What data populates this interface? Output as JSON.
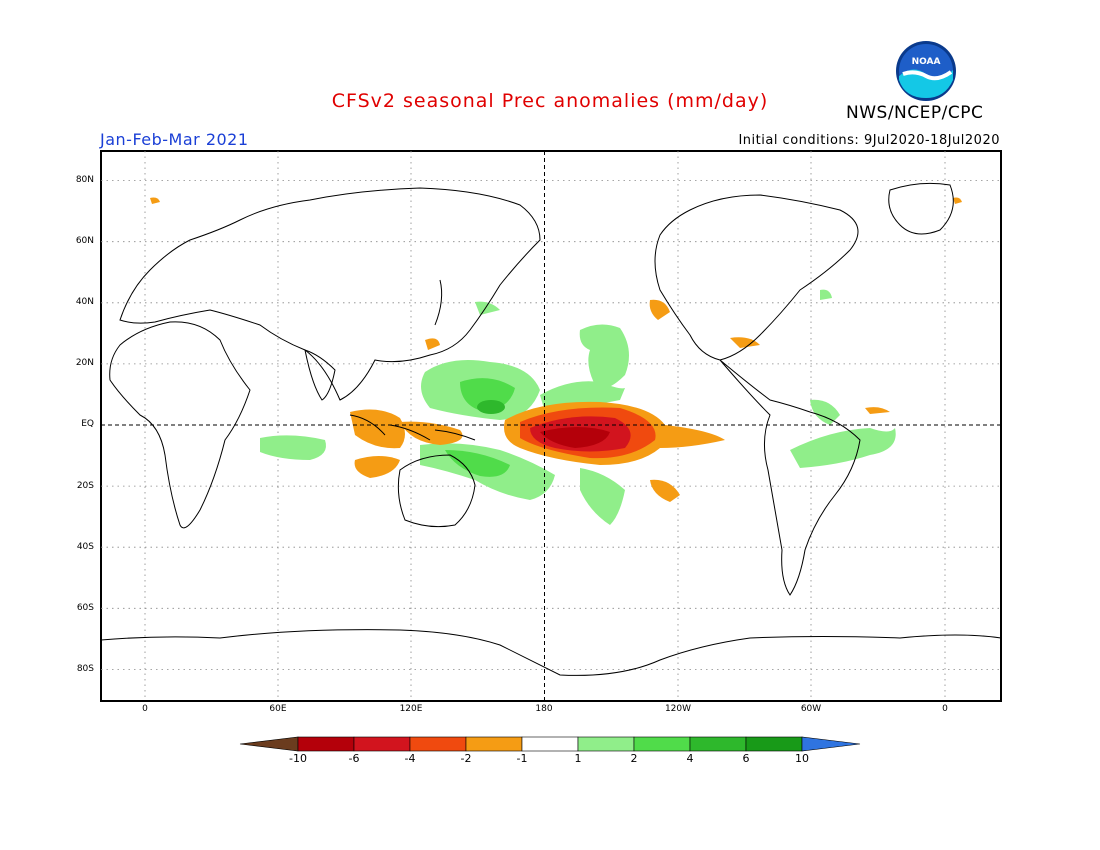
{
  "header": {
    "title": "CFSv2 seasonal Prec anomalies (mm/day)",
    "season": "Jan-Feb-Mar 2021",
    "initial_conditions": "Initial conditions: 9Jul2020-18Jul2020",
    "agency": "NWS/NCEP/CPC",
    "logo_text": "NOAA"
  },
  "axes": {
    "lat_labels": [
      "80N",
      "60N",
      "40N",
      "20N",
      "EQ",
      "20S",
      "40S",
      "60S",
      "80S"
    ],
    "lon_labels": [
      "0",
      "60E",
      "120E",
      "180",
      "120W",
      "60W",
      "0"
    ],
    "lat_range": [
      -90,
      90
    ],
    "lon_range": [
      -20,
      380
    ],
    "grid": "dotted"
  },
  "legend": {
    "labels": [
      "-10",
      "-6",
      "-4",
      "-2",
      "-1",
      "1",
      "2",
      "4",
      "6",
      "10"
    ],
    "colors": [
      "#6b3c1e",
      "#b4000a",
      "#d2141e",
      "#f04a0f",
      "#f59c14",
      "#ffffff",
      "#90ee8a",
      "#50dc4a",
      "#2eb82c",
      "#189a18",
      "#2f74e0"
    ]
  }
}
